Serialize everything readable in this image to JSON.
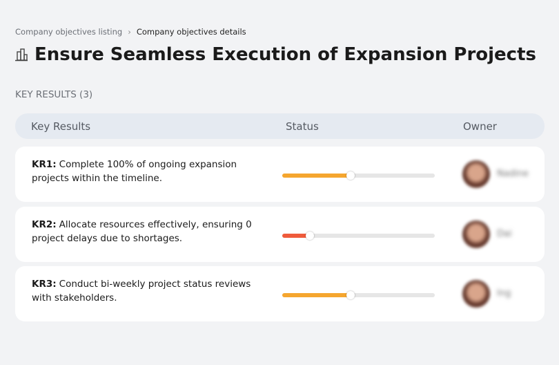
{
  "breadcrumb": [
    "Company objectives listing",
    "Company objectives details"
  ],
  "title": "Ensure Seamless Execution of Expansion Projects",
  "section_label": "KEY RESULTS (3)",
  "table": {
    "headers": [
      "Key Results",
      "Status",
      "Owner"
    ],
    "rows": [
      {
        "label": "KR1:",
        "text": "Complete 100% of ongoing expansion projects within the timeline.",
        "progress": 45,
        "color": "#f5a62f",
        "owner": "Nadine"
      },
      {
        "label": "KR2:",
        "text": "Allocate resources effectively, ensuring 0 project delays due to shortages.",
        "progress": 18,
        "color": "#ef5b3b",
        "owner": "Dai"
      },
      {
        "label": "KR3:",
        "text": "Conduct bi-weekly project status reviews with stakeholders.",
        "progress": 45,
        "color": "#f5a62f",
        "owner": "Ing"
      }
    ]
  }
}
